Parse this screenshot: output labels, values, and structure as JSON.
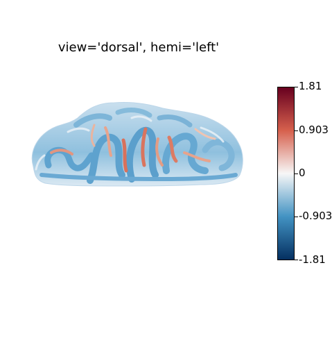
{
  "figure": {
    "title": "view='dorsal', hemi='left'"
  },
  "colorbar": {
    "colormap": "RdBu_r",
    "min": -1.81,
    "max": 1.81,
    "ticks": [
      {
        "value": 1.81,
        "label": "1.81"
      },
      {
        "value": 0.903,
        "label": "0.903"
      },
      {
        "value": 0,
        "label": "0"
      },
      {
        "value": -0.903,
        "label": "-0.903"
      },
      {
        "value": -1.81,
        "label": "-1.81"
      }
    ],
    "colors": {
      "top": "#67001f",
      "upper": "#d6604d",
      "mid": "#f7f7f7",
      "lower": "#4393c3",
      "bottom": "#053061"
    }
  },
  "brain": {
    "surface_colors": {
      "base": "#8fc0de",
      "light": "#dbe9f3",
      "dark": "#4d97c8",
      "warm": "#e59a80",
      "hot": "#d1604a"
    }
  }
}
